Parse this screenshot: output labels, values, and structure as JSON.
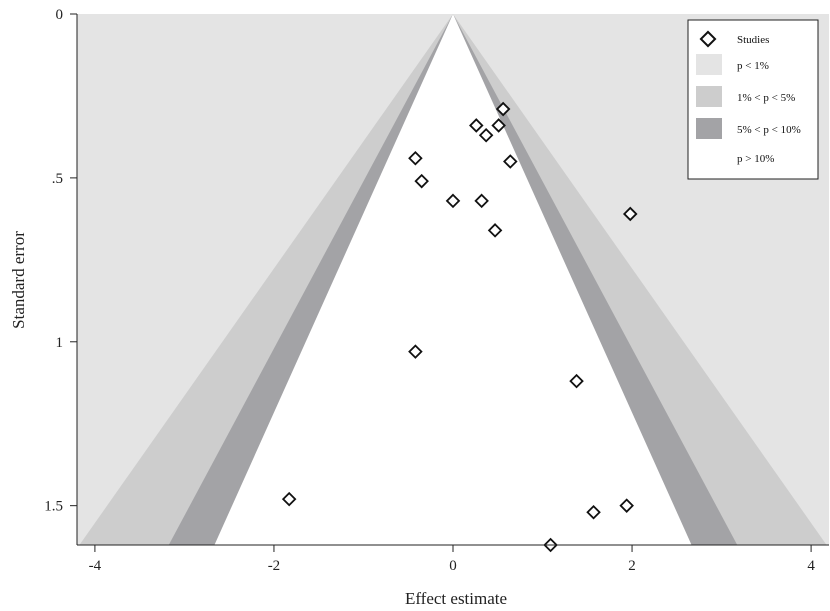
{
  "chart_data": {
    "type": "scatter",
    "xlabel": "Effect estimate",
    "ylabel": "Standard error",
    "xlim": [
      -4.2,
      4.2
    ],
    "ylim": [
      0,
      1.62
    ],
    "y_reversed": true,
    "x_ticks": [
      -4,
      -2,
      0,
      2,
      4
    ],
    "x_tick_labels": [
      "-4",
      "-2",
      "0",
      "2",
      "4"
    ],
    "y_ticks": [
      0,
      0.5,
      1,
      1.5
    ],
    "y_tick_labels": [
      "0",
      ".5",
      "1",
      "1.5"
    ],
    "grid": false,
    "legend_position": "top-right",
    "legend": {
      "studies": "Studies",
      "p1": "p < 1%",
      "p5": "1% < p < 5%",
      "p10": "5% < p < 10%",
      "pgt10": "p > 10%"
    },
    "contours": [
      {
        "name": "p < 1%",
        "z": 2.576,
        "color": "#e4e4e4"
      },
      {
        "name": "1% < p < 5%",
        "z": 1.96,
        "color": "#cdcdcd"
      },
      {
        "name": "5% < p < 10%",
        "z": 1.645,
        "color": "#a3a3a6"
      },
      {
        "name": "p > 10%",
        "color": "#ffffff"
      }
    ],
    "series": [
      {
        "name": "Studies",
        "points": [
          {
            "x": 0.56,
            "y": 0.29
          },
          {
            "x": 0.26,
            "y": 0.34
          },
          {
            "x": 0.51,
            "y": 0.34
          },
          {
            "x": 0.37,
            "y": 0.37
          },
          {
            "x": -0.42,
            "y": 0.44
          },
          {
            "x": 0.64,
            "y": 0.45
          },
          {
            "x": -0.35,
            "y": 0.51
          },
          {
            "x": 0.0,
            "y": 0.57
          },
          {
            "x": 0.32,
            "y": 0.57
          },
          {
            "x": 1.98,
            "y": 0.61
          },
          {
            "x": 0.47,
            "y": 0.66
          },
          {
            "x": -0.42,
            "y": 1.03
          },
          {
            "x": 1.38,
            "y": 1.12
          },
          {
            "x": -1.83,
            "y": 1.48
          },
          {
            "x": 1.57,
            "y": 1.52
          },
          {
            "x": 1.94,
            "y": 1.5
          },
          {
            "x": 1.09,
            "y": 1.62
          }
        ]
      }
    ]
  }
}
